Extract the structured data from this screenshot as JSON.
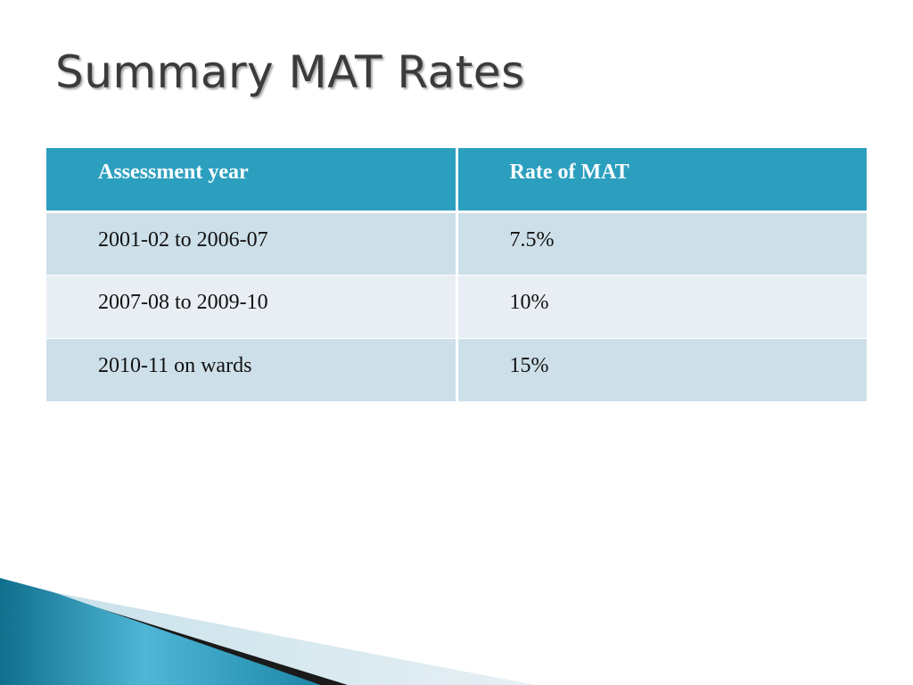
{
  "slide": {
    "title": "Summary MAT Rates"
  },
  "table": {
    "headers": [
      "Assessment year",
      "Rate of MAT"
    ],
    "rows": [
      [
        "2001-02 to 2006-07",
        "7.5%"
      ],
      [
        "2007-08 to 2009-10",
        "10%"
      ],
      [
        "2010-11 on wards",
        "15%"
      ]
    ]
  },
  "colors": {
    "header_bg": "#2c9fbf",
    "row_odd_bg": "#cddfe8",
    "row_even_bg": "#e8eef4",
    "title_color": "#3b3b3b",
    "accent_teal": "#1f8fae"
  }
}
